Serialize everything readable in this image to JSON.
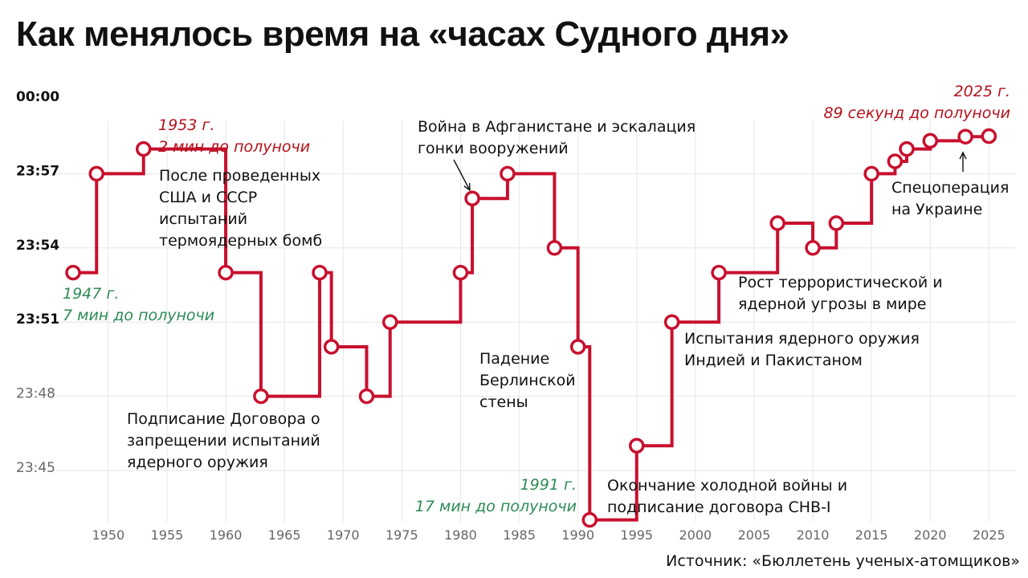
{
  "title": "Как менялось время на «часах Судного дня»",
  "source": "Источник: «Бюллетень ученых-атомщиков»",
  "colors": {
    "line": "#c8102e",
    "highlight_red": "#b5121b",
    "highlight_green": "#2e8b57",
    "grid": "#e6e6e6",
    "text": "#111111"
  },
  "chart_data": {
    "type": "line",
    "step": true,
    "xlabel": "",
    "ylabel": "",
    "xlim": [
      1946,
      2026
    ],
    "ylim": [
      -17.9,
      0
    ],
    "x_ticks": [
      "1950",
      "1955",
      "1960",
      "1965",
      "1970",
      "1975",
      "1980",
      "1985",
      "1990",
      "1995",
      "2000",
      "2005",
      "2010",
      "2015",
      "2020",
      "2025"
    ],
    "y_ticks": [
      {
        "label": "00:00",
        "value": 0,
        "bold": true
      },
      {
        "label": "23:57",
        "value": -3,
        "bold": true
      },
      {
        "label": "23:54",
        "value": -6,
        "bold": true
      },
      {
        "label": "23:51",
        "value": -9,
        "bold": true
      },
      {
        "label": "23:48",
        "value": -12,
        "bold": false
      },
      {
        "label": "23:45",
        "value": -15,
        "bold": false
      }
    ],
    "grid": true,
    "series": [
      {
        "points": [
          {
            "x": 1947,
            "y": -7
          },
          {
            "x": 1949,
            "y": -3
          },
          {
            "x": 1953,
            "y": -2
          },
          {
            "x": 1960,
            "y": -7
          },
          {
            "x": 1963,
            "y": -12
          },
          {
            "x": 1968,
            "y": -7
          },
          {
            "x": 1969,
            "y": -10
          },
          {
            "x": 1972,
            "y": -12
          },
          {
            "x": 1974,
            "y": -9
          },
          {
            "x": 1980,
            "y": -7
          },
          {
            "x": 1981,
            "y": -4
          },
          {
            "x": 1984,
            "y": -3
          },
          {
            "x": 1988,
            "y": -6
          },
          {
            "x": 1990,
            "y": -10
          },
          {
            "x": 1991,
            "y": -17
          },
          {
            "x": 1995,
            "y": -14
          },
          {
            "x": 1998,
            "y": -9
          },
          {
            "x": 2002,
            "y": -7
          },
          {
            "x": 2007,
            "y": -5
          },
          {
            "x": 2010,
            "y": -6
          },
          {
            "x": 2012,
            "y": -5
          },
          {
            "x": 2015,
            "y": -3
          },
          {
            "x": 2017,
            "y": -2.5
          },
          {
            "x": 2018,
            "y": -2
          },
          {
            "x": 2020,
            "y": -1.67
          },
          {
            "x": 2023,
            "y": -1.5
          },
          {
            "x": 2025,
            "y": -1.48
          }
        ]
      }
    ],
    "highlights": [
      {
        "id": "h1947",
        "lines": [
          "1947 г.",
          "7 мин до полуночи"
        ],
        "color": "green"
      },
      {
        "id": "h1953",
        "lines": [
          "1953 г.",
          "2 мин до полуночи"
        ],
        "color": "red"
      },
      {
        "id": "h1991",
        "lines": [
          "1991 г.",
          "17 мин до полуночи"
        ],
        "color": "green"
      },
      {
        "id": "h2025",
        "lines": [
          "2025 г.",
          "89 секунд до полуночи"
        ],
        "color": "red"
      }
    ],
    "annotations": [
      {
        "id": "a1953",
        "lines": [
          "После проведенных",
          "США и СССР",
          "испытаний",
          "термоядерных бомб"
        ]
      },
      {
        "id": "a1963",
        "lines": [
          "Подписание Договора о",
          "запрещении испытаний",
          "ядерного оружия"
        ]
      },
      {
        "id": "a1981",
        "lines": [
          "Война в Афганистане и эскалация",
          "гонки вооружений"
        ]
      },
      {
        "id": "a1990",
        "lines": [
          "Падение",
          "Берлинской",
          "стены"
        ]
      },
      {
        "id": "a1991",
        "lines": [
          "Окончание холодной войны и",
          "подписание договора СНВ-I"
        ]
      },
      {
        "id": "a1998",
        "lines": [
          "Испытания ядерного оружия",
          "Индией и Пакистаном"
        ]
      },
      {
        "id": "a2002",
        "lines": [
          "Рост террористической и",
          "ядерной угрозы в мире"
        ]
      },
      {
        "id": "a2022",
        "lines": [
          "Спецоперация",
          "на Украине"
        ]
      }
    ]
  }
}
